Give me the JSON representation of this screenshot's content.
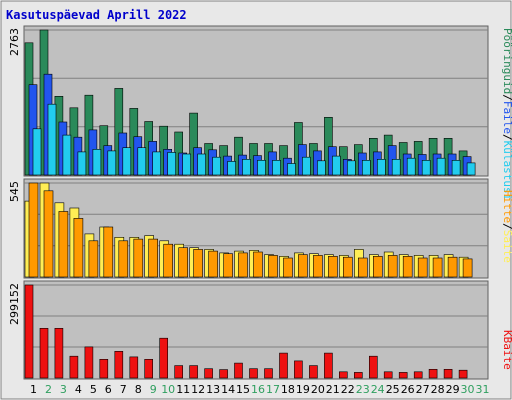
{
  "title": "Kasutuspäevad Aprill 2022",
  "colors": {
    "title": "#0000cc",
    "panel_bg": "#c0c0c0",
    "outer_bg": "#e8e8e8",
    "grid": "#808080",
    "weekday_tick": "#000000",
    "weekend_tick": "#2f9f5f",
    "visits": "#2a8a5a",
    "files": "#2255ee",
    "pages": "#22ccee",
    "hits": "#ffee55",
    "sites": "#ff9900",
    "kbytes": "#ee1111"
  },
  "chart_data": [
    {
      "type": "bar",
      "panel": "top",
      "ymax_label": "2763",
      "ymax": 2763,
      "categories": [
        "1",
        "2",
        "3",
        "4",
        "5",
        "6",
        "7",
        "8",
        "9",
        "10",
        "11",
        "12",
        "13",
        "14",
        "15",
        "16",
        "17",
        "18",
        "19",
        "20",
        "21",
        "22",
        "23",
        "24",
        "25",
        "26",
        "27",
        "28",
        "29",
        "30",
        "31"
      ],
      "weekend": [
        false,
        true,
        true,
        false,
        false,
        false,
        false,
        false,
        true,
        true,
        false,
        false,
        false,
        false,
        false,
        true,
        true,
        false,
        false,
        false,
        false,
        false,
        true,
        true,
        false,
        false,
        false,
        false,
        false,
        true,
        true
      ],
      "series": [
        {
          "name": "Külastusi",
          "color_key": "visits",
          "values": [
            2520,
            2763,
            1500,
            1280,
            1520,
            940,
            1650,
            1270,
            1020,
            930,
            820,
            1180,
            600,
            560,
            720,
            600,
            600,
            560,
            1000,
            600,
            1100,
            540,
            580,
            700,
            760,
            620,
            640,
            700,
            700,
            460,
            0
          ]
        },
        {
          "name": "Faile",
          "color_key": "files",
          "values": [
            1720,
            1920,
            1010,
            720,
            860,
            560,
            800,
            730,
            640,
            490,
            420,
            520,
            480,
            360,
            380,
            370,
            440,
            320,
            580,
            460,
            540,
            300,
            420,
            440,
            560,
            400,
            390,
            400,
            400,
            350,
            0
          ]
        },
        {
          "name": "Pööringuid",
          "color_key": "pages",
          "values": [
            880,
            1350,
            760,
            440,
            490,
            460,
            520,
            520,
            440,
            430,
            400,
            400,
            340,
            260,
            300,
            280,
            280,
            220,
            340,
            270,
            360,
            270,
            280,
            300,
            300,
            320,
            280,
            320,
            280,
            230,
            0
          ]
        }
      ]
    },
    {
      "type": "bar",
      "panel": "middle",
      "ymax_label": "545",
      "ymax": 545,
      "series": [
        {
          "name": "Hitte",
          "color_key": "hits",
          "values": [
            440,
            545,
            430,
            400,
            250,
            290,
            230,
            230,
            240,
            210,
            190,
            170,
            160,
            140,
            150,
            155,
            130,
            120,
            140,
            135,
            130,
            125,
            160,
            130,
            145,
            130,
            125,
            125,
            130,
            115,
            0
          ]
        },
        {
          "name": "Saite",
          "color_key": "sites",
          "values": [
            545,
            500,
            380,
            340,
            210,
            290,
            210,
            220,
            220,
            190,
            170,
            160,
            150,
            135,
            140,
            145,
            125,
            110,
            130,
            125,
            120,
            115,
            110,
            120,
            125,
            120,
            110,
            110,
            115,
            105,
            0
          ]
        }
      ]
    },
    {
      "type": "bar",
      "panel": "bottom",
      "ymax_label": "299152",
      "ymax": 299152,
      "series": [
        {
          "name": "KBaite",
          "color_key": "kbytes",
          "values": [
            299152,
            160000,
            160000,
            70000,
            100000,
            60000,
            86000,
            68000,
            60000,
            128000,
            40000,
            40000,
            30000,
            27000,
            48000,
            30000,
            30000,
            80000,
            55000,
            40000,
            80000,
            20000,
            18000,
            70000,
            20000,
            18000,
            20000,
            28000,
            28000,
            25000,
            0
          ]
        }
      ]
    }
  ],
  "right_labels": {
    "top": [
      "Pööringuid",
      "/",
      "Faile",
      "/",
      "Külastusi"
    ],
    "middle": [
      "Hitte",
      "/",
      "Saite"
    ],
    "bottom": [
      "KBaite"
    ]
  }
}
